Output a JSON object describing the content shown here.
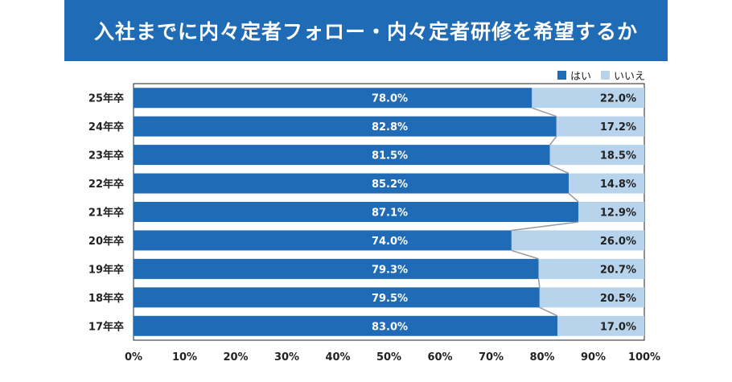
{
  "title": "入社までに内々定者フォロー・内々定者研修を希望するか",
  "legend": [
    {
      "label": "はい",
      "color": "#1f6bb5"
    },
    {
      "label": "いいえ",
      "color": "#b8d3ec"
    }
  ],
  "chart_data": {
    "type": "bar",
    "orientation": "horizontal",
    "stacked": true,
    "percent_stacked": true,
    "title": "入社までに内々定者フォロー・内々定者研修を希望するか",
    "xlabel": "",
    "ylabel": "",
    "xlim": [
      0,
      100
    ],
    "x_ticks": [
      "0%",
      "10%",
      "20%",
      "30%",
      "40%",
      "50%",
      "60%",
      "70%",
      "80%",
      "90%",
      "100%"
    ],
    "categories": [
      "25年卒",
      "24年卒",
      "23年卒",
      "22年卒",
      "21年卒",
      "20年卒",
      "19年卒",
      "18年卒",
      "17年卒"
    ],
    "series": [
      {
        "name": "はい",
        "color": "#1f6bb5",
        "values": [
          78.0,
          82.8,
          81.5,
          85.2,
          87.1,
          74.0,
          79.3,
          79.5,
          83.0
        ],
        "labels": [
          "78.0%",
          "82.8%",
          "81.5%",
          "85.2%",
          "87.1%",
          "74.0%",
          "79.3%",
          "79.5%",
          "83.0%"
        ]
      },
      {
        "name": "いいえ",
        "color": "#b8d3ec",
        "values": [
          22.0,
          17.2,
          18.5,
          14.8,
          12.9,
          26.0,
          20.7,
          20.5,
          17.0
        ],
        "labels": [
          "22.0%",
          "17.2%",
          "18.5%",
          "14.8%",
          "12.9%",
          "26.0%",
          "20.7%",
          "20.5%",
          "17.0%"
        ]
      }
    ],
    "series_lines": true,
    "grid": false,
    "legend_position": "top-right"
  }
}
